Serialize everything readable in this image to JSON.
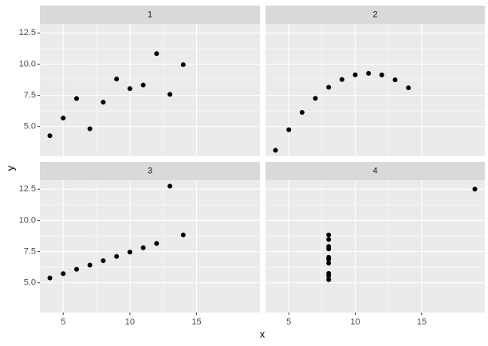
{
  "x_label": "x",
  "y_label": "y",
  "chart_data": [
    {
      "type": "scatter",
      "title": "1",
      "x": [
        10,
        8,
        13,
        9,
        11,
        14,
        6,
        4,
        12,
        7,
        5
      ],
      "values": [
        8.04,
        6.95,
        7.58,
        8.81,
        8.33,
        9.96,
        7.24,
        4.26,
        10.84,
        4.82,
        5.68
      ],
      "color": "#000000",
      "xlim": [
        3.25,
        19.75
      ],
      "ylim": [
        2.618,
        13.222
      ],
      "xticks": [
        5,
        10,
        15
      ],
      "yticks": [
        {
          "value": 5,
          "label": "5.0"
        },
        {
          "value": 7.5,
          "label": "7.5"
        },
        {
          "value": 10,
          "label": "10.0"
        },
        {
          "value": 12.5,
          "label": "12.5"
        }
      ],
      "grid": true
    },
    {
      "type": "scatter",
      "title": "2",
      "x": [
        10,
        8,
        13,
        9,
        11,
        14,
        6,
        4,
        12,
        7,
        5
      ],
      "values": [
        9.14,
        8.14,
        8.74,
        8.77,
        9.26,
        8.1,
        6.13,
        3.1,
        9.13,
        7.26,
        4.74
      ],
      "color": "#000000",
      "xlim": [
        3.25,
        19.75
      ],
      "ylim": [
        2.618,
        13.222
      ],
      "xticks": [
        5,
        10,
        15
      ],
      "yticks": [
        {
          "value": 5,
          "label": "5.0"
        },
        {
          "value": 7.5,
          "label": "7.5"
        },
        {
          "value": 10,
          "label": "10.0"
        },
        {
          "value": 12.5,
          "label": "12.5"
        }
      ],
      "grid": true
    },
    {
      "type": "scatter",
      "title": "3",
      "x": [
        10,
        8,
        13,
        9,
        11,
        14,
        6,
        4,
        12,
        7,
        5
      ],
      "values": [
        7.46,
        6.77,
        12.74,
        7.11,
        7.81,
        8.84,
        6.08,
        5.39,
        8.15,
        6.42,
        5.73
      ],
      "color": "#000000",
      "xlim": [
        3.25,
        19.75
      ],
      "ylim": [
        2.618,
        13.222
      ],
      "xticks": [
        5,
        10,
        15
      ],
      "yticks": [
        {
          "value": 5,
          "label": "5.0"
        },
        {
          "value": 7.5,
          "label": "7.5"
        },
        {
          "value": 10,
          "label": "10.0"
        },
        {
          "value": 12.5,
          "label": "12.5"
        }
      ],
      "grid": true
    },
    {
      "type": "scatter",
      "title": "4",
      "x": [
        8,
        8,
        8,
        8,
        8,
        8,
        8,
        19,
        8,
        8,
        8
      ],
      "values": [
        6.58,
        5.76,
        7.71,
        8.84,
        8.47,
        7.04,
        5.25,
        12.5,
        5.56,
        7.91,
        6.89
      ],
      "color": "#000000",
      "xlim": [
        3.25,
        19.75
      ],
      "ylim": [
        2.618,
        13.222
      ],
      "xticks": [
        5,
        10,
        15
      ],
      "yticks": [
        {
          "value": 5,
          "label": "5.0"
        },
        {
          "value": 7.5,
          "label": "7.5"
        },
        {
          "value": 10,
          "label": "10.0"
        },
        {
          "value": 12.5,
          "label": "12.5"
        }
      ],
      "grid": true
    }
  ]
}
